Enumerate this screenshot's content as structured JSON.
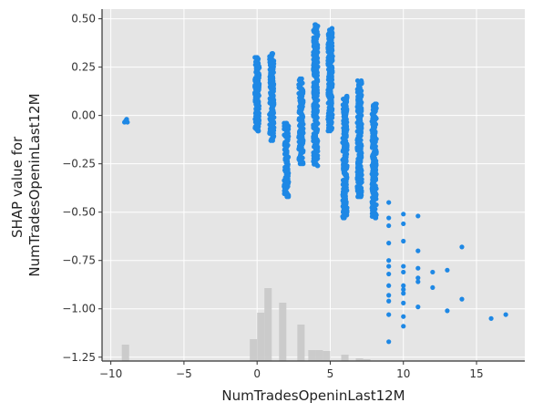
{
  "chart_data": {
    "type": "scatter",
    "title": "",
    "xlabel": "NumTradesOpeninLast12M",
    "ylabel_lines": [
      "SHAP value for",
      "NumTradesOpeninLast12M"
    ],
    "xlim": [
      -10.6,
      18.3
    ],
    "ylim": [
      -1.27,
      0.55
    ],
    "x_ticks": [
      -10,
      -5,
      0,
      5,
      10,
      15
    ],
    "x_tick_labels": [
      "−10",
      "−5",
      "0",
      "5",
      "10",
      "15"
    ],
    "y_ticks": [
      0.5,
      0.25,
      0.0,
      -0.25,
      -0.5,
      -0.75,
      -1.0,
      -1.25
    ],
    "y_tick_labels": [
      "0.50",
      "0.25",
      "0.00",
      "−0.25",
      "−0.50",
      "−0.75",
      "−1.00",
      "−1.25"
    ],
    "grid": true,
    "background_color": "#e5e5e5",
    "point_color": "#1e88e5",
    "histogram_color": "#c8c8c8",
    "clusters": [
      {
        "x": -9,
        "y_min": -0.035,
        "y_max": -0.02
      },
      {
        "x": 0,
        "y_min": -0.08,
        "y_max": 0.3
      },
      {
        "x": 1,
        "y_min": -0.13,
        "y_max": 0.32
      },
      {
        "x": 2,
        "y_min": -0.42,
        "y_max": -0.04
      },
      {
        "x": 3,
        "y_min": -0.25,
        "y_max": 0.19
      },
      {
        "x": 4,
        "y_min": -0.26,
        "y_max": 0.47
      },
      {
        "x": 5,
        "y_min": -0.08,
        "y_max": 0.45
      },
      {
        "x": 6,
        "y_min": -0.53,
        "y_max": 0.1
      },
      {
        "x": 7,
        "y_min": -0.42,
        "y_max": 0.18
      },
      {
        "x": 8,
        "y_min": -0.53,
        "y_max": 0.06
      }
    ],
    "points": [
      [
        9,
        -0.45
      ],
      [
        9,
        -0.53
      ],
      [
        9,
        -0.57
      ],
      [
        9,
        -0.66
      ],
      [
        9,
        -0.75
      ],
      [
        9,
        -0.78
      ],
      [
        9,
        -0.82
      ],
      [
        9,
        -0.88
      ],
      [
        9,
        -0.93
      ],
      [
        9,
        -0.96
      ],
      [
        9,
        -1.03
      ],
      [
        9,
        -1.17
      ],
      [
        10,
        -0.51
      ],
      [
        10,
        -0.56
      ],
      [
        10,
        -0.65
      ],
      [
        10,
        -0.78
      ],
      [
        10,
        -0.81
      ],
      [
        10,
        -0.88
      ],
      [
        10,
        -0.9
      ],
      [
        10,
        -0.92
      ],
      [
        10,
        -0.97
      ],
      [
        10,
        -1.04
      ],
      [
        10,
        -1.09
      ],
      [
        11,
        -0.52
      ],
      [
        11,
        -0.7
      ],
      [
        11,
        -0.79
      ],
      [
        11,
        -0.84
      ],
      [
        11,
        -0.86
      ],
      [
        11,
        -0.99
      ],
      [
        12,
        -0.81
      ],
      [
        12,
        -0.89
      ],
      [
        13,
        -0.8
      ],
      [
        13,
        -1.01
      ],
      [
        14,
        -0.68
      ],
      [
        14,
        -0.95
      ],
      [
        16,
        -1.05
      ],
      [
        17,
        -1.03
      ]
    ],
    "histogram": [
      {
        "x": -9,
        "height": 0.18
      },
      {
        "x": -0.25,
        "height": 0.24
      },
      {
        "x": 0.25,
        "height": 0.53
      },
      {
        "x": 0.75,
        "height": 0.8
      },
      {
        "x": 1.75,
        "height": 0.64
      },
      {
        "x": 3.0,
        "height": 0.4
      },
      {
        "x": 3.75,
        "height": 0.12
      },
      {
        "x": 4.25,
        "height": 0.12
      },
      {
        "x": 4.75,
        "height": 0.11
      },
      {
        "x": 6.0,
        "height": 0.07
      },
      {
        "x": 7.0,
        "height": 0.03
      },
      {
        "x": 7.5,
        "height": 0.02
      }
    ]
  }
}
